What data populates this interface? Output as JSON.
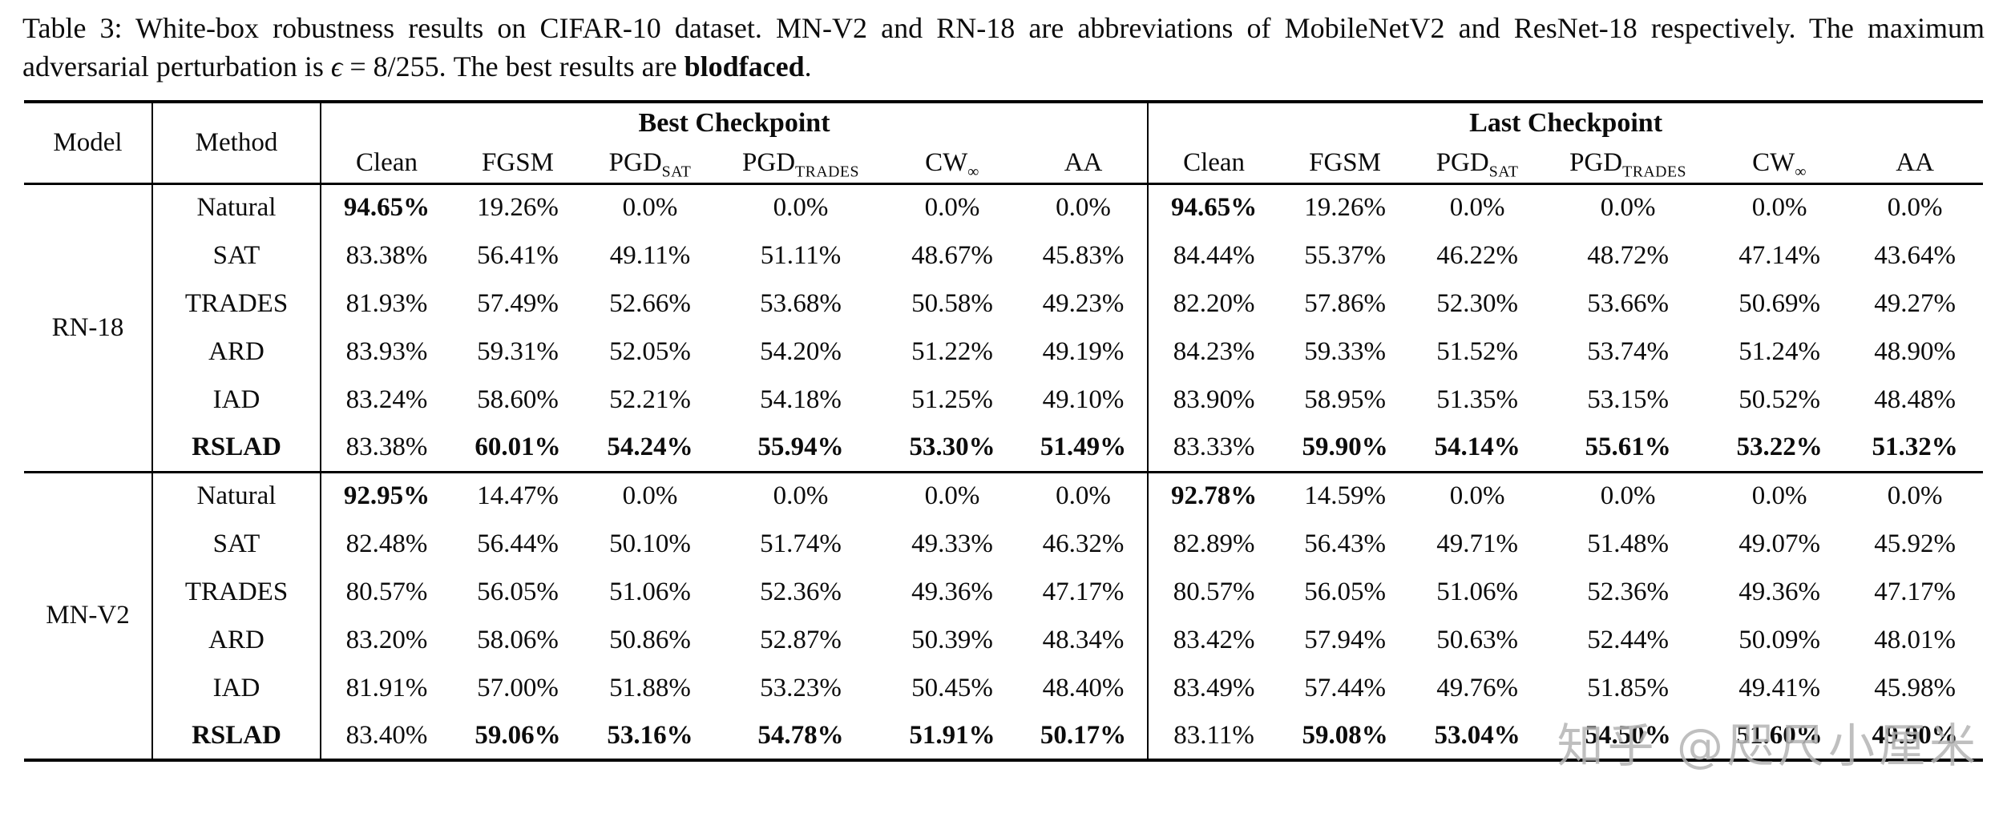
{
  "caption": {
    "segments": [
      {
        "text": "Table 3: White-box robustness results on CIFAR-10 dataset. MN-V2 and RN-18 are abbreviations of MobileNetV2 and ResNet-18 respectively. The maximum adversarial perturbation is "
      },
      {
        "text": "ϵ"
      },
      {
        "text": " = 8/255. The best results are "
      },
      {
        "text": "blodfaced"
      },
      {
        "text": "."
      }
    ]
  },
  "table": {
    "model_header": "Model",
    "method_header": "Method",
    "best_group": "Best Checkpoint",
    "last_group": "Last Checkpoint",
    "columns": [
      {
        "main": "Clean",
        "sub": ""
      },
      {
        "main": "FGSM",
        "sub": ""
      },
      {
        "main": "PGD",
        "sub": "SAT"
      },
      {
        "main": "PGD",
        "sub": "TRADES"
      },
      {
        "main": "CW",
        "sub": "∞"
      },
      {
        "main": "AA",
        "sub": ""
      }
    ],
    "groups": [
      {
        "model": "RN-18",
        "rows": [
          {
            "method": "Natural",
            "bold_method": false,
            "bold_cells": [
              0,
              6
            ],
            "cells": [
              "94.65%",
              "19.26%",
              "0.0%",
              "0.0%",
              "0.0%",
              "0.0%",
              "94.65%",
              "19.26%",
              "0.0%",
              "0.0%",
              "0.0%",
              "0.0%"
            ]
          },
          {
            "method": "SAT",
            "bold_method": false,
            "bold_cells": [],
            "cells": [
              "83.38%",
              "56.41%",
              "49.11%",
              "51.11%",
              "48.67%",
              "45.83%",
              "84.44%",
              "55.37%",
              "46.22%",
              "48.72%",
              "47.14%",
              "43.64%"
            ]
          },
          {
            "method": "TRADES",
            "bold_method": false,
            "bold_cells": [],
            "cells": [
              "81.93%",
              "57.49%",
              "52.66%",
              "53.68%",
              "50.58%",
              "49.23%",
              "82.20%",
              "57.86%",
              "52.30%",
              "53.66%",
              "50.69%",
              "49.27%"
            ]
          },
          {
            "method": "ARD",
            "bold_method": false,
            "bold_cells": [],
            "cells": [
              "83.93%",
              "59.31%",
              "52.05%",
              "54.20%",
              "51.22%",
              "49.19%",
              "84.23%",
              "59.33%",
              "51.52%",
              "53.74%",
              "51.24%",
              "48.90%"
            ]
          },
          {
            "method": "IAD",
            "bold_method": false,
            "bold_cells": [],
            "cells": [
              "83.24%",
              "58.60%",
              "52.21%",
              "54.18%",
              "51.25%",
              "49.10%",
              "83.90%",
              "58.95%",
              "51.35%",
              "53.15%",
              "50.52%",
              "48.48%"
            ]
          },
          {
            "method": "RSLAD",
            "bold_method": true,
            "bold_cells": [
              1,
              2,
              3,
              4,
              5,
              7,
              8,
              9,
              10,
              11
            ],
            "cells": [
              "83.38%",
              "60.01%",
              "54.24%",
              "55.94%",
              "53.30%",
              "51.49%",
              "83.33%",
              "59.90%",
              "54.14%",
              "55.61%",
              "53.22%",
              "51.32%"
            ]
          }
        ]
      },
      {
        "model": "MN-V2",
        "rows": [
          {
            "method": "Natural",
            "bold_method": false,
            "bold_cells": [
              0,
              6
            ],
            "cells": [
              "92.95%",
              "14.47%",
              "0.0%",
              "0.0%",
              "0.0%",
              "0.0%",
              "92.78%",
              "14.59%",
              "0.0%",
              "0.0%",
              "0.0%",
              "0.0%"
            ]
          },
          {
            "method": "SAT",
            "bold_method": false,
            "bold_cells": [],
            "cells": [
              "82.48%",
              "56.44%",
              "50.10%",
              "51.74%",
              "49.33%",
              "46.32%",
              "82.89%",
              "56.43%",
              "49.71%",
              "51.48%",
              "49.07%",
              "45.92%"
            ]
          },
          {
            "method": "TRADES",
            "bold_method": false,
            "bold_cells": [],
            "cells": [
              "80.57%",
              "56.05%",
              "51.06%",
              "52.36%",
              "49.36%",
              "47.17%",
              "80.57%",
              "56.05%",
              "51.06%",
              "52.36%",
              "49.36%",
              "47.17%"
            ]
          },
          {
            "method": "ARD",
            "bold_method": false,
            "bold_cells": [],
            "cells": [
              "83.20%",
              "58.06%",
              "50.86%",
              "52.87%",
              "50.39%",
              "48.34%",
              "83.42%",
              "57.94%",
              "50.63%",
              "52.44%",
              "50.09%",
              "48.01%"
            ]
          },
          {
            "method": "IAD",
            "bold_method": false,
            "bold_cells": [],
            "cells": [
              "81.91%",
              "57.00%",
              "51.88%",
              "53.23%",
              "50.45%",
              "48.40%",
              "83.49%",
              "57.44%",
              "49.76%",
              "51.85%",
              "49.41%",
              "45.98%"
            ]
          },
          {
            "method": "RSLAD",
            "bold_method": true,
            "bold_cells": [
              1,
              2,
              3,
              4,
              5,
              7,
              8,
              9,
              10,
              11
            ],
            "cells": [
              "83.40%",
              "59.06%",
              "53.16%",
              "54.78%",
              "51.91%",
              "50.17%",
              "83.11%",
              "59.08%",
              "53.04%",
              "54.50%",
              "51.60%",
              "49.90%"
            ]
          }
        ]
      }
    ]
  },
  "watermark": {
    "text": "知乎 @咫尺小厘米"
  }
}
